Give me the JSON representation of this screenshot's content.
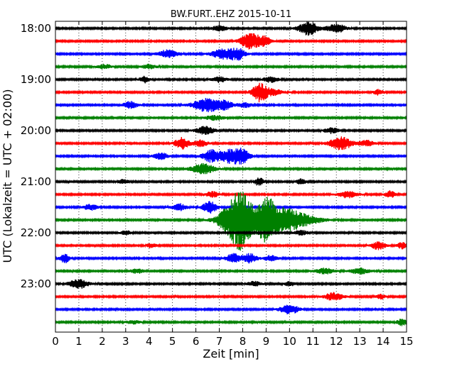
{
  "chart_data": {
    "type": "line",
    "title": "BW.FURT..EHZ 2015-10-11",
    "xlabel": "Zeit  [min]",
    "ylabel": "UTC (Lokalzeit = UTC + 02:00)",
    "xlim": [
      0,
      15
    ],
    "x_ticks": [
      "0",
      "1",
      "2",
      "3",
      "4",
      "5",
      "6",
      "7",
      "8",
      "9",
      "10",
      "11",
      "12",
      "13",
      "14",
      "15"
    ],
    "y_ticks": [
      {
        "label": "18:00",
        "trace": 0
      },
      {
        "label": "19:00",
        "trace": 4
      },
      {
        "label": "20:00",
        "trace": 8
      },
      {
        "label": "21:00",
        "trace": 12
      },
      {
        "label": "22:00",
        "trace": 16
      },
      {
        "label": "23:00",
        "trace": 20
      }
    ],
    "grid": "vertical dotted at each minute",
    "trace_interval_min": 15,
    "colors": [
      "#000000",
      "#ff0000",
      "#0000ff",
      "#008000"
    ],
    "traces": [
      {
        "start": "18:00",
        "color": "#000000",
        "events": [
          {
            "t": 7.0,
            "amp": 0.5,
            "dur": 0.3
          },
          {
            "t": 10.8,
            "amp": 1.2,
            "dur": 0.4
          },
          {
            "t": 12.0,
            "amp": 0.8,
            "dur": 0.4
          }
        ]
      },
      {
        "start": "18:15",
        "color": "#ff0000",
        "events": [
          {
            "t": 8.3,
            "amp": 1.4,
            "dur": 0.4
          },
          {
            "t": 8.9,
            "amp": 0.8,
            "dur": 0.3
          }
        ]
      },
      {
        "start": "18:30",
        "color": "#0000ff",
        "events": [
          {
            "t": 4.8,
            "amp": 0.7,
            "dur": 0.4
          },
          {
            "t": 7.2,
            "amp": 0.9,
            "dur": 0.5
          },
          {
            "t": 7.8,
            "amp": 0.9,
            "dur": 0.3
          }
        ]
      },
      {
        "start": "18:45",
        "color": "#008000",
        "events": [
          {
            "t": 2.1,
            "amp": 0.4,
            "dur": 0.3
          },
          {
            "t": 4.0,
            "amp": 0.4,
            "dur": 0.3
          }
        ]
      },
      {
        "start": "19:00",
        "color": "#000000",
        "events": [
          {
            "t": 3.8,
            "amp": 0.6,
            "dur": 0.2
          },
          {
            "t": 7.0,
            "amp": 0.5,
            "dur": 0.3
          },
          {
            "t": 9.2,
            "amp": 0.5,
            "dur": 0.3
          }
        ]
      },
      {
        "start": "19:15",
        "color": "#ff0000",
        "events": [
          {
            "t": 8.7,
            "amp": 1.4,
            "dur": 0.3
          },
          {
            "t": 9.2,
            "amp": 0.6,
            "dur": 0.5
          },
          {
            "t": 13.8,
            "amp": 0.5,
            "dur": 0.2
          }
        ]
      },
      {
        "start": "19:30",
        "color": "#0000ff",
        "events": [
          {
            "t": 3.2,
            "amp": 0.6,
            "dur": 0.3
          },
          {
            "t": 6.5,
            "amp": 1.2,
            "dur": 0.6
          },
          {
            "t": 7.3,
            "amp": 0.6,
            "dur": 0.3
          },
          {
            "t": 8.1,
            "amp": 0.4,
            "dur": 0.3
          }
        ]
      },
      {
        "start": "19:45",
        "color": "#008000",
        "events": [
          {
            "t": 6.8,
            "amp": 0.4,
            "dur": 0.4
          }
        ]
      },
      {
        "start": "20:00",
        "color": "#000000",
        "events": [
          {
            "t": 6.4,
            "amp": 0.7,
            "dur": 0.4
          },
          {
            "t": 11.8,
            "amp": 0.5,
            "dur": 0.3
          }
        ]
      },
      {
        "start": "20:15",
        "color": "#ff0000",
        "events": [
          {
            "t": 5.4,
            "amp": 1.0,
            "dur": 0.3
          },
          {
            "t": 6.2,
            "amp": 0.6,
            "dur": 0.3
          },
          {
            "t": 12.2,
            "amp": 1.1,
            "dur": 0.5
          },
          {
            "t": 13.3,
            "amp": 0.5,
            "dur": 0.3
          }
        ]
      },
      {
        "start": "20:30",
        "color": "#0000ff",
        "events": [
          {
            "t": 4.5,
            "amp": 0.6,
            "dur": 0.3
          },
          {
            "t": 6.7,
            "amp": 1.1,
            "dur": 0.4
          },
          {
            "t": 7.5,
            "amp": 1.2,
            "dur": 0.4
          },
          {
            "t": 8.0,
            "amp": 1.1,
            "dur": 0.3
          }
        ]
      },
      {
        "start": "20:45",
        "color": "#008000",
        "events": [
          {
            "t": 6.3,
            "amp": 0.9,
            "dur": 0.5
          }
        ]
      },
      {
        "start": "21:00",
        "color": "#000000",
        "events": [
          {
            "t": 2.9,
            "amp": 0.4,
            "dur": 0.2
          },
          {
            "t": 8.7,
            "amp": 0.7,
            "dur": 0.2
          },
          {
            "t": 10.5,
            "amp": 0.5,
            "dur": 0.2
          }
        ]
      },
      {
        "start": "21:15",
        "color": "#ff0000",
        "events": [
          {
            "t": 6.7,
            "amp": 0.5,
            "dur": 0.3
          },
          {
            "t": 12.5,
            "amp": 0.6,
            "dur": 0.4
          },
          {
            "t": 14.3,
            "amp": 0.6,
            "dur": 0.2
          }
        ]
      },
      {
        "start": "21:30",
        "color": "#0000ff",
        "events": [
          {
            "t": 1.5,
            "amp": 0.5,
            "dur": 0.3
          },
          {
            "t": 5.3,
            "amp": 0.6,
            "dur": 0.3
          },
          {
            "t": 6.6,
            "amp": 1.0,
            "dur": 0.3
          }
        ]
      },
      {
        "start": "21:45",
        "color": "#008000",
        "events": [
          {
            "t": 7.5,
            "amp": 2.0,
            "dur": 0.6
          },
          {
            "t": 8.0,
            "amp": 4.2,
            "dur": 0.5
          },
          {
            "t": 9.0,
            "amp": 3.8,
            "dur": 0.4
          },
          {
            "t": 9.8,
            "amp": 1.9,
            "dur": 0.6
          },
          {
            "t": 10.6,
            "amp": 0.8,
            "dur": 0.8
          }
        ]
      },
      {
        "start": "22:00",
        "color": "#000000",
        "events": [
          {
            "t": 3.0,
            "amp": 0.4,
            "dur": 0.2
          },
          {
            "t": 10.5,
            "amp": 0.4,
            "dur": 0.3
          }
        ]
      },
      {
        "start": "22:15",
        "color": "#ff0000",
        "events": [
          {
            "t": 4.1,
            "amp": 0.4,
            "dur": 0.2
          },
          {
            "t": 13.8,
            "amp": 0.7,
            "dur": 0.3
          },
          {
            "t": 14.8,
            "amp": 0.6,
            "dur": 0.2
          }
        ]
      },
      {
        "start": "22:30",
        "color": "#0000ff",
        "events": [
          {
            "t": 0.4,
            "amp": 0.8,
            "dur": 0.2
          },
          {
            "t": 7.6,
            "amp": 0.8,
            "dur": 0.3
          },
          {
            "t": 8.3,
            "amp": 0.8,
            "dur": 0.3
          },
          {
            "t": 9.2,
            "amp": 0.5,
            "dur": 0.3
          }
        ]
      },
      {
        "start": "22:45",
        "color": "#008000",
        "events": [
          {
            "t": 3.5,
            "amp": 0.4,
            "dur": 0.3
          },
          {
            "t": 11.5,
            "amp": 0.5,
            "dur": 0.4
          },
          {
            "t": 13.0,
            "amp": 0.5,
            "dur": 0.4
          }
        ]
      },
      {
        "start": "23:00",
        "color": "#000000",
        "events": [
          {
            "t": 1.0,
            "amp": 0.8,
            "dur": 0.4
          },
          {
            "t": 8.5,
            "amp": 0.4,
            "dur": 0.3
          },
          {
            "t": 10.0,
            "amp": 0.4,
            "dur": 0.2
          }
        ]
      },
      {
        "start": "23:15",
        "color": "#ff0000",
        "events": [
          {
            "t": 11.9,
            "amp": 0.7,
            "dur": 0.4
          },
          {
            "t": 13.9,
            "amp": 0.4,
            "dur": 0.2
          }
        ]
      },
      {
        "start": "23:30",
        "color": "#0000ff",
        "events": [
          {
            "t": 10.0,
            "amp": 0.8,
            "dur": 0.4
          }
        ]
      },
      {
        "start": "23:45",
        "color": "#008000",
        "events": [
          {
            "t": 3.3,
            "amp": 0.3,
            "dur": 0.3
          },
          {
            "t": 14.8,
            "amp": 0.6,
            "dur": 0.2
          }
        ]
      }
    ]
  }
}
